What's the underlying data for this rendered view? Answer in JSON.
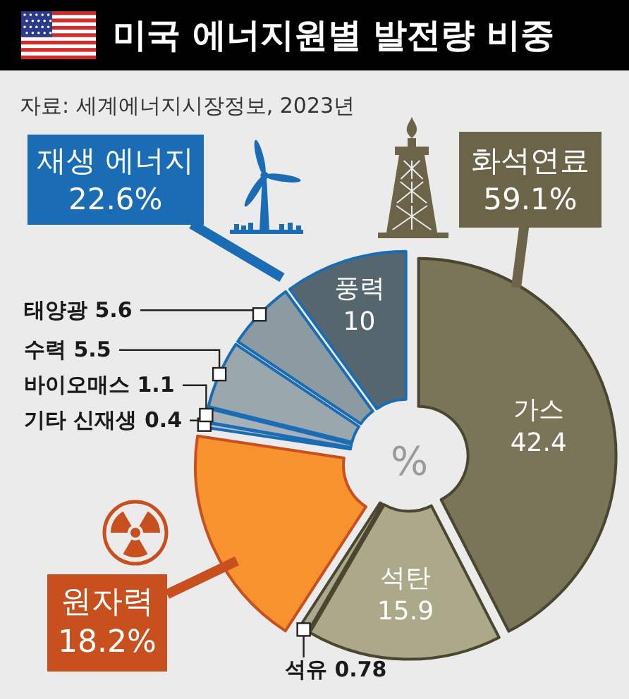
{
  "chart_data": {
    "type": "donut",
    "title": "미국 에너지원별 발전량 비중",
    "categories": [
      "가스",
      "석탄",
      "석유",
      "원자력",
      "기타 신재생",
      "바이오매스",
      "수력",
      "태양광",
      "풍력"
    ],
    "values": [
      42.4,
      15.9,
      0.78,
      18.2,
      0.4,
      1.1,
      5.5,
      5.6,
      10
    ],
    "colors": [
      "#7a7458",
      "#aca88a",
      "#aca88a",
      "#f7922f",
      "#b5bfc4",
      "#a7b2b8",
      "#9aa7ad",
      "#8c9ba2",
      "#56666e"
    ],
    "value_labels": [
      "42.4",
      "15.9",
      "0.78",
      "18.2%",
      "0.4",
      "1.1",
      "5.5",
      "5.6",
      "10"
    ],
    "annotations": [
      "자료: 세계에너지시장정보, 2023년",
      "%",
      "재생 에너지\n22.6%",
      "화석연료\n59.1%"
    ]
  }
}
